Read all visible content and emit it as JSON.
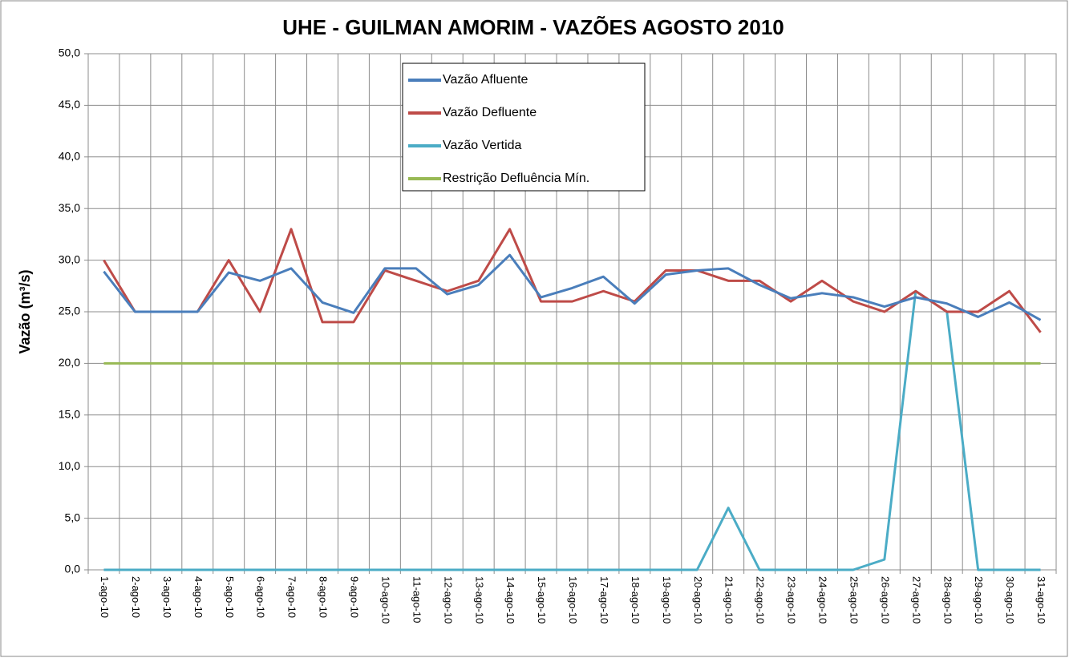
{
  "chart_data": {
    "type": "line",
    "title": "UHE - GUILMAN AMORIM - VAZÕES AGOSTO 2010",
    "y_label": "Vazão (m³/s)",
    "categories": [
      "1-ago-10",
      "2-ago-10",
      "3-ago-10",
      "4-ago-10",
      "5-ago-10",
      "6-ago-10",
      "7-ago-10",
      "8-ago-10",
      "9-ago-10",
      "10-ago-10",
      "11-ago-10",
      "12-ago-10",
      "13-ago-10",
      "14-ago-10",
      "15-ago-10",
      "16-ago-10",
      "17-ago-10",
      "18-ago-10",
      "19-ago-10",
      "20-ago-10",
      "21-ago-10",
      "22-ago-10",
      "23-ago-10",
      "24-ago-10",
      "25-ago-10",
      "26-ago-10",
      "27-ago-10",
      "28-ago-10",
      "29-ago-10",
      "30-ago-10",
      "31-ago-10"
    ],
    "series": [
      {
        "name": "Vazão Afluente",
        "color": "#4a7ebb",
        "values": [
          28.9,
          25.0,
          25.0,
          25.0,
          28.8,
          28.0,
          29.2,
          25.9,
          24.9,
          29.2,
          29.2,
          26.7,
          27.6,
          30.5,
          26.4,
          27.3,
          28.4,
          25.8,
          28.6,
          29.0,
          29.2,
          27.6,
          26.3,
          26.8,
          26.4,
          25.5,
          26.4,
          25.8,
          24.5,
          25.9,
          24.2
        ]
      },
      {
        "name": "Vazão Defluente",
        "color": "#be4b48",
        "values": [
          30,
          25,
          25,
          25,
          30,
          25,
          33,
          24,
          24,
          29,
          28,
          27,
          28,
          33,
          26,
          26,
          27,
          26,
          29,
          29,
          28,
          28,
          26,
          28,
          26,
          25,
          27,
          25,
          25,
          27,
          23
        ]
      },
      {
        "name": "Vazão Vertida",
        "color": "#4bacc6",
        "values": [
          0,
          0,
          0,
          0,
          0,
          0,
          0,
          0,
          0,
          0,
          0,
          0,
          0,
          0,
          0,
          0,
          0,
          0,
          0,
          0,
          6,
          0,
          0,
          0,
          0,
          1,
          27,
          25,
          0,
          0,
          0
        ]
      },
      {
        "name": "Restrição Defluência Mín.",
        "color": "#98b954",
        "values": [
          20,
          20,
          20,
          20,
          20,
          20,
          20,
          20,
          20,
          20,
          20,
          20,
          20,
          20,
          20,
          20,
          20,
          20,
          20,
          20,
          20,
          20,
          20,
          20,
          20,
          20,
          20,
          20,
          20,
          20,
          20
        ]
      }
    ],
    "ylim": [
      0,
      50
    ],
    "yticks": [
      {
        "value": 0,
        "label": "0,0"
      },
      {
        "value": 5,
        "label": "5,0"
      },
      {
        "value": 10,
        "label": "10,0"
      },
      {
        "value": 15,
        "label": "15,0"
      },
      {
        "value": 20,
        "label": "20,0"
      },
      {
        "value": 25,
        "label": "25,0"
      },
      {
        "value": 30,
        "label": "30,0"
      },
      {
        "value": 35,
        "label": "35,0"
      },
      {
        "value": 40,
        "label": "40,0"
      },
      {
        "value": 45,
        "label": "45,0"
      },
      {
        "value": 50,
        "label": "50,0"
      }
    ],
    "grid": true,
    "legend": "top"
  }
}
